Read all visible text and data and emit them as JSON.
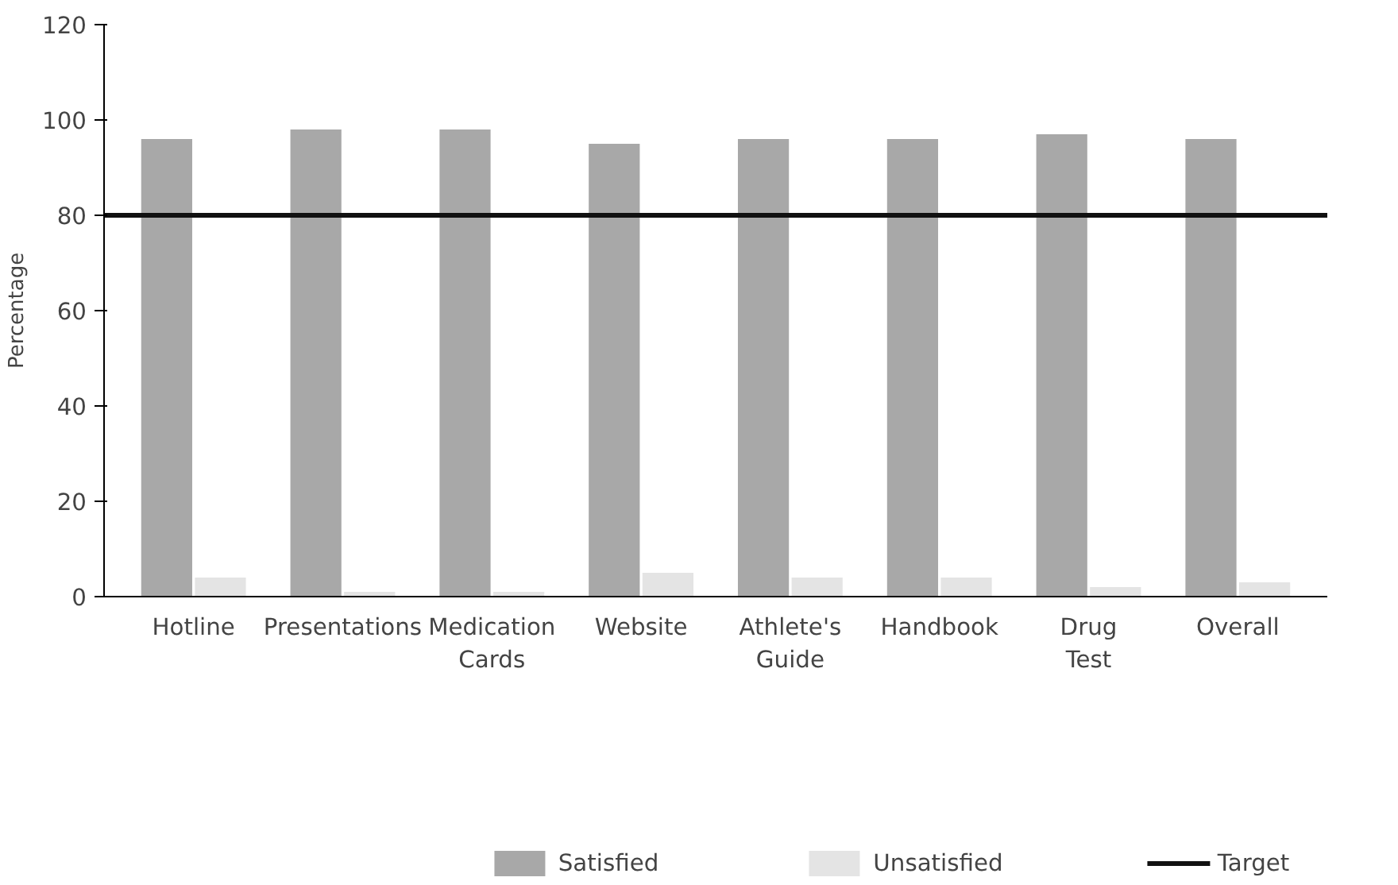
{
  "chart_data": {
    "type": "bar",
    "ylabel": "Percentage",
    "categories": [
      "Hotline",
      "Presentations",
      "Medication\nCards",
      "Website",
      "Athlete's\nGuide",
      "Handbook",
      "Drug\nTest",
      "Overall"
    ],
    "series": [
      {
        "name": "Satisfied",
        "color": "#a8a8a8",
        "values": [
          96,
          98,
          98,
          95,
          96,
          96,
          97,
          96
        ]
      },
      {
        "name": "Unsatisfied",
        "color": "#e4e4e4",
        "values": [
          4,
          1,
          1,
          5,
          4,
          4,
          2,
          3
        ]
      }
    ],
    "ref_lines": [
      {
        "axis": "y",
        "value": 80,
        "label": "Target",
        "color": "#111111"
      }
    ],
    "ylim": [
      0,
      120
    ],
    "yticks": [
      0,
      20,
      40,
      60,
      80,
      100,
      120
    ],
    "grid": false,
    "legend": "bottom"
  }
}
